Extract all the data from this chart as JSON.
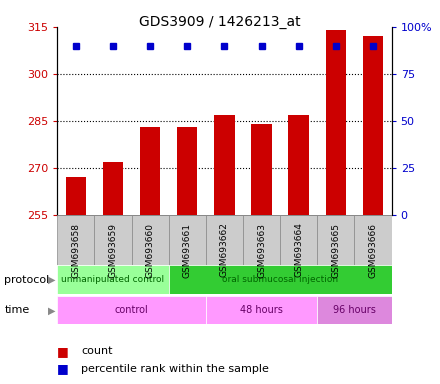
{
  "title": "GDS3909 / 1426213_at",
  "samples": [
    "GSM693658",
    "GSM693659",
    "GSM693660",
    "GSM693661",
    "GSM693662",
    "GSM693663",
    "GSM693664",
    "GSM693665",
    "GSM693666"
  ],
  "counts": [
    267,
    272,
    283,
    283,
    287,
    284,
    287,
    314,
    312
  ],
  "percentile_ranks": [
    90,
    90,
    90,
    90,
    90,
    90,
    90,
    90,
    90
  ],
  "ylim_left": [
    255,
    315
  ],
  "ylim_right": [
    0,
    100
  ],
  "yticks_left": [
    255,
    270,
    285,
    300,
    315
  ],
  "yticks_right": [
    0,
    25,
    50,
    75,
    100
  ],
  "bar_color": "#cc0000",
  "dot_color": "#0000cc",
  "background_color": "#ffffff",
  "plot_bg_color": "#ffffff",
  "protocol_groups": [
    {
      "label": "unmanipulated control",
      "start": 0,
      "end": 3,
      "color": "#99ff99"
    },
    {
      "label": "oral submucosal injection",
      "start": 3,
      "end": 9,
      "color": "#33cc33"
    }
  ],
  "time_groups": [
    {
      "label": "control",
      "start": 0,
      "end": 4,
      "color": "#ff99ff"
    },
    {
      "label": "48 hours",
      "start": 4,
      "end": 7,
      "color": "#ff99ff"
    },
    {
      "label": "96 hours",
      "start": 7,
      "end": 9,
      "color": "#dd88dd"
    }
  ],
  "protocol_label": "protocol",
  "time_label": "time",
  "legend_count_label": "count",
  "legend_percentile_label": "percentile rank within the sample",
  "tick_color_left": "#cc0000",
  "tick_color_right": "#0000cc",
  "sample_box_color": "#cccccc",
  "sample_box_edge": "#888888"
}
